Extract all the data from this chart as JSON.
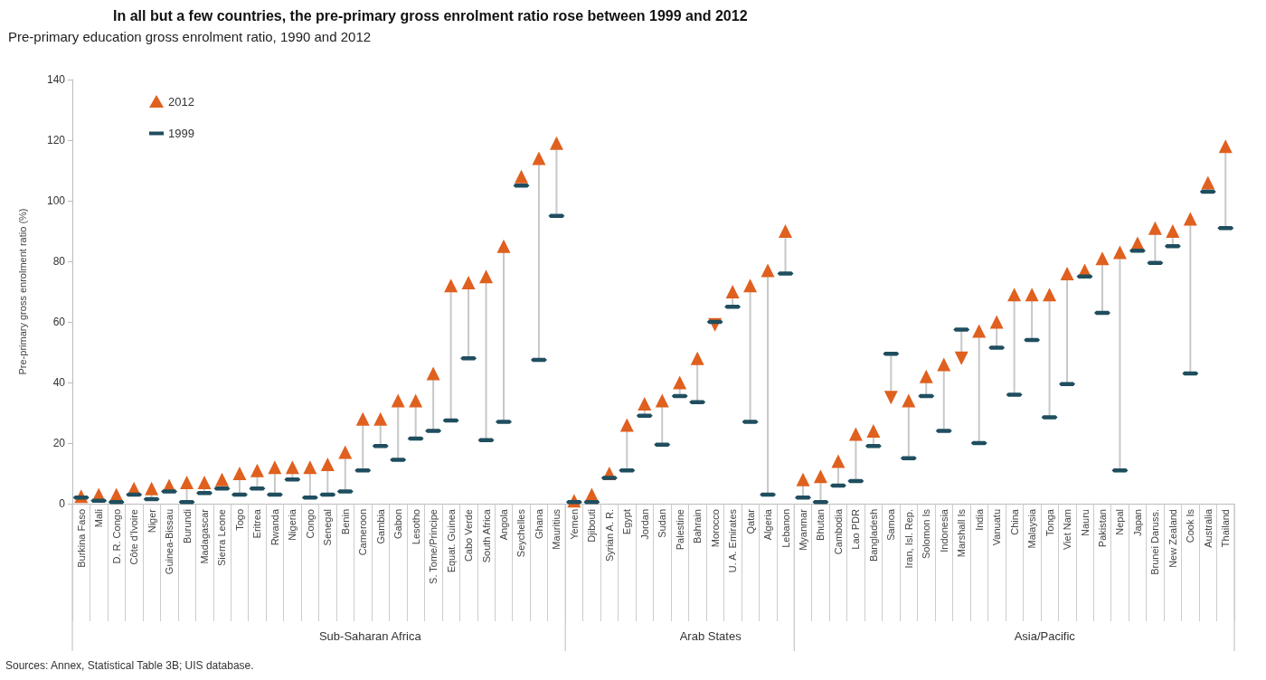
{
  "chart_data": {
    "type": "scatter",
    "title": "In all but a few countries, the pre-primary gross enrolment ratio rose between 1999 and 2012",
    "subtitle": "Pre-primary education gross enrolment ratio, 1990 and 2012",
    "ylabel": "Pre-primary gross enrolment ratio (%)",
    "categories": [
      "Burkina Faso",
      "Mali",
      "D. R. Congo",
      "Côte d'Ivoire",
      "Niger",
      "Guinea-Bissau",
      "Burundi",
      "Madagascar",
      "Sierra Leone",
      "Togo",
      "Eritrea",
      "Rwanda",
      "Nigeria",
      "Congo",
      "Senegal",
      "Benin",
      "Cameroon",
      "Gambia",
      "Gabon",
      "Lesotho",
      "S. Tome/Principe",
      "Equat. Guinea",
      "Cabo Verde",
      "South Africa",
      "Angola",
      "Seychelles",
      "Ghana",
      "Mauritius",
      "Yemen",
      "Djibouti",
      "Syrian A. R.",
      "Egypt",
      "Jordan",
      "Sudan",
      "Palestine",
      "Bahrain",
      "Morocco",
      "U. A. Emirates",
      "Qatar",
      "Algeria",
      "Lebanon",
      "Myanmar",
      "Bhutan",
      "Cambodia",
      "Lao PDR",
      "Bangladesh",
      "Samoa",
      "Iran, Isl. Rep.",
      "Solomon Is",
      "Indonesia",
      "Marshall Is",
      "India",
      "Vanuatu",
      "China",
      "Malaysia",
      "Tonga",
      "Viet Nam",
      "Nauru",
      "Pakistan",
      "Nepal",
      "Japan",
      "Brunei Daruss.",
      "New Zealand",
      "Cook Is",
      "Australia",
      "Thailand"
    ],
    "series": [
      {
        "name": "2012",
        "color": "#e0601f",
        "marker": "triangle",
        "values": [
          2.5,
          3,
          3,
          5,
          5,
          6,
          7,
          7,
          8,
          10,
          11,
          12,
          12,
          12,
          13,
          17,
          28,
          28,
          34,
          34,
          43,
          72,
          73,
          75,
          85,
          108,
          114,
          119,
          1,
          3,
          10,
          26,
          33,
          34,
          40,
          48,
          59,
          70,
          72,
          77,
          90,
          8,
          9,
          14,
          23,
          24,
          35,
          34,
          42,
          46,
          48,
          57,
          60,
          69,
          69,
          69,
          76,
          77,
          81,
          83,
          86,
          91,
          90,
          94,
          106,
          118
        ]
      },
      {
        "name": "1999",
        "color": "#1f4e5f",
        "values": [
          2,
          1,
          0.5,
          3,
          1.5,
          4,
          0.5,
          3.5,
          5,
          3,
          5,
          3,
          8,
          2,
          3,
          4,
          11,
          19,
          14.5,
          21.5,
          24,
          27.5,
          48,
          21,
          27,
          105,
          47.5,
          95,
          0.5,
          0.5,
          8.5,
          11,
          29,
          19.5,
          35.5,
          33.5,
          60,
          65,
          27,
          3,
          76,
          2,
          0.5,
          6,
          7.5,
          19,
          49.5,
          15,
          35.5,
          24,
          57.5,
          20,
          51.5,
          36,
          54,
          28.5,
          39.5,
          75,
          63,
          11,
          83.5,
          79.5,
          85,
          43,
          103,
          91
        ]
      }
    ],
    "ylim": [
      0,
      140
    ],
    "yticks": [
      0,
      20,
      40,
      60,
      80,
      100,
      120,
      140
    ],
    "grid": false,
    "legend": "top left",
    "annotations": [
      "Sub-Saharan Africa",
      "Arab States",
      "Asia/Pacific",
      "Sources: Annex, Statistical Table 3B; UIS database."
    ]
  }
}
